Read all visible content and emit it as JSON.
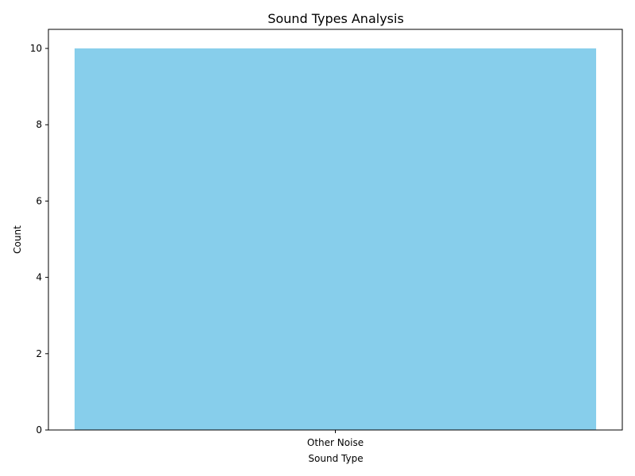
{
  "chart_data": {
    "type": "bar",
    "title": "Sound Types Analysis",
    "xlabel": "Sound Type",
    "ylabel": "Count",
    "categories": [
      "Other Noise"
    ],
    "values": [
      10
    ],
    "ylim": [
      0,
      10.5
    ],
    "yticks": [
      0,
      2,
      4,
      6,
      8,
      10
    ],
    "bar_color": "#87ceeb",
    "grid": false,
    "legend": "none"
  }
}
